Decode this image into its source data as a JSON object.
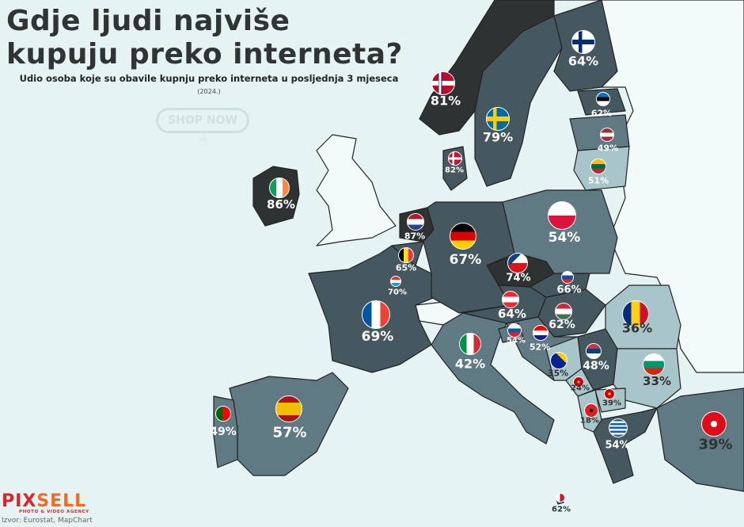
{
  "header": {
    "title_line1": "Gdje ljudi najviše",
    "title_line2": "kupuju preko interneta?",
    "subtitle": "Udio osoba koje su obavile kupnju preko interneta u posljednja 3 mjeseca",
    "year": "(2024.)"
  },
  "shop_button": {
    "label": "SHOP NOW",
    "icon": "hand-pointer-icon"
  },
  "footer": {
    "logo_part1": "PIX",
    "logo_part2": "SELL",
    "logo_tagline": "PHOTO & VIDEO AGENCY",
    "source": "Izvor: Eurostat, MapChart"
  },
  "colors": {
    "background": "#e5f4f2",
    "darkest": "#2f3233",
    "dark": "#46585f",
    "mid": "#5f7a83",
    "light": "#a8c6ca",
    "non_data": "#f3fbfa"
  },
  "countries": [
    {
      "flag": "flag-norway",
      "value": "81%",
      "type": "nordic",
      "c": [
        "#ba0c2f",
        "#fff",
        "#00205b"
      ]
    },
    {
      "flag": "flag-sweden",
      "value": "79%",
      "type": "nordic",
      "c": [
        "#006aa7",
        "#fecc00",
        "#fecc00"
      ]
    },
    {
      "flag": "flag-finland",
      "value": "64%",
      "type": "nordic",
      "c": [
        "#fff",
        "#002f6c",
        "#002f6c"
      ]
    },
    {
      "flag": "flag-estonia",
      "value": "62%",
      "type": "h3",
      "c": [
        "#0072ce",
        "#000",
        "#fff"
      ]
    },
    {
      "flag": "flag-latvia",
      "value": "49%",
      "type": "h3",
      "c": [
        "#9e3039",
        "#fff",
        "#9e3039"
      ]
    },
    {
      "flag": "flag-lithuania",
      "value": "51%",
      "type": "h3",
      "c": [
        "#fdb913",
        "#006a44",
        "#c1272d"
      ]
    },
    {
      "flag": "flag-denmark",
      "value": "82%",
      "type": "nordic",
      "c": [
        "#c8102e",
        "#fff",
        "#fff"
      ]
    },
    {
      "flag": "flag-ireland",
      "value": "86%",
      "type": "v3",
      "c": [
        "#169b62",
        "#fff",
        "#ff883e"
      ]
    },
    {
      "flag": "flag-netherlands",
      "value": "87%",
      "type": "h3",
      "c": [
        "#ae1c28",
        "#fff",
        "#21468b"
      ]
    },
    {
      "flag": "flag-germany",
      "value": "67%",
      "type": "h3",
      "c": [
        "#000",
        "#dd0000",
        "#ffce00"
      ]
    },
    {
      "flag": "flag-poland",
      "value": "54%",
      "type": "h2",
      "c": [
        "#fff",
        "#dc143c"
      ]
    },
    {
      "flag": "flag-belgium",
      "value": "65%",
      "type": "v3",
      "c": [
        "#000",
        "#fdda24",
        "#ef3340"
      ]
    },
    {
      "flag": "flag-luxembourg",
      "value": "70%",
      "type": "h3",
      "c": [
        "#ed2939",
        "#fff",
        "#00a1de"
      ]
    },
    {
      "flag": "flag-czechia",
      "value": "74%",
      "type": "cz",
      "c": [
        "#fff",
        "#d7141a",
        "#11457e"
      ]
    },
    {
      "flag": "flag-slovakia",
      "value": "66%",
      "type": "h3",
      "c": [
        "#fff",
        "#0b4ea2",
        "#ee1c25"
      ]
    },
    {
      "flag": "flag-france",
      "value": "69%",
      "type": "v3",
      "c": [
        "#0055a4",
        "#fff",
        "#ef4135"
      ]
    },
    {
      "flag": "flag-austria",
      "value": "64%",
      "type": "h3",
      "c": [
        "#ed2939",
        "#fff",
        "#ed2939"
      ]
    },
    {
      "flag": "flag-hungary",
      "value": "62%",
      "type": "h3",
      "c": [
        "#ce2939",
        "#fff",
        "#477050"
      ]
    },
    {
      "flag": "flag-romania",
      "value": "36%",
      "type": "v3",
      "c": [
        "#002b7f",
        "#fcd116",
        "#ce1126"
      ]
    },
    {
      "flag": "flag-slovenia",
      "value": "54%",
      "type": "h3",
      "c": [
        "#fff",
        "#005da4",
        "#ed1c24"
      ]
    },
    {
      "flag": "flag-croatia",
      "value": "52%",
      "type": "h3",
      "c": [
        "#ff0000",
        "#fff",
        "#171796"
      ]
    },
    {
      "flag": "flag-italy",
      "value": "42%",
      "type": "v3",
      "c": [
        "#009246",
        "#fff",
        "#ce2b37"
      ]
    },
    {
      "flag": "flag-serbia",
      "value": "48%",
      "type": "h3",
      "c": [
        "#c6363c",
        "#0c4076",
        "#fff"
      ]
    },
    {
      "flag": "flag-bulgaria",
      "value": "33%",
      "type": "h3",
      "c": [
        "#fff",
        "#00966e",
        "#d62612"
      ]
    },
    {
      "flag": "flag-bosnia",
      "value": "35%",
      "type": "ba",
      "c": [
        "#002395",
        "#fecb00"
      ]
    },
    {
      "flag": "flag-montenegro",
      "value": "24%",
      "type": "solid",
      "c": [
        "#d3ae3b",
        "#c40308"
      ]
    },
    {
      "flag": "flag-north-macedonia",
      "value": "39%",
      "type": "solid",
      "c": [
        "#f8e92e",
        "#d20000"
      ]
    },
    {
      "flag": "flag-albania",
      "value": "18%",
      "type": "solid",
      "c": [
        "#000",
        "#e41e20"
      ]
    },
    {
      "flag": "flag-greece",
      "value": "54%",
      "type": "gr",
      "c": [
        "#0d5eaf",
        "#fff"
      ]
    },
    {
      "flag": "flag-turkey",
      "value": "39%",
      "type": "solid",
      "c": [
        "#fff",
        "#e30a17"
      ]
    },
    {
      "flag": "flag-portugal",
      "value": "49%",
      "type": "pt",
      "c": [
        "#006600",
        "#ff0000"
      ]
    },
    {
      "flag": "flag-spain",
      "value": "57%",
      "type": "h3es",
      "c": [
        "#aa151b",
        "#f1bf00",
        "#aa151b"
      ]
    },
    {
      "flag": "flag-malta",
      "value": "62%",
      "type": "pt",
      "c": [
        "#fff",
        "#cf142b"
      ]
    }
  ]
}
